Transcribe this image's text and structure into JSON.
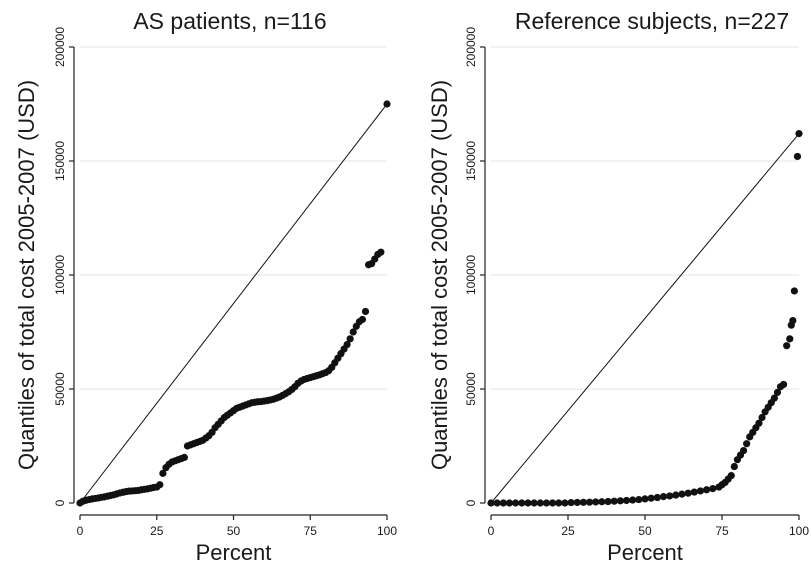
{
  "figure": {
    "ylabel": "Quantiles of total cost 2005-2007 (USD)"
  },
  "chart_data": [
    {
      "type": "scatter",
      "title": "AS patients, n=116",
      "xlabel": "Percent",
      "ylabel": "Quantiles of total cost 2005-2007 (USD)",
      "xlim": [
        0,
        100
      ],
      "ylim": [
        0,
        200000
      ],
      "xticks": [
        0,
        25,
        50,
        75,
        100
      ],
      "yticks": [
        0,
        50000,
        100000,
        150000,
        200000
      ],
      "reference_line": {
        "x": [
          0,
          100
        ],
        "y": [
          0,
          175000
        ]
      },
      "grid": true,
      "points": [
        [
          0,
          0
        ],
        [
          1,
          800
        ],
        [
          2,
          1200
        ],
        [
          3,
          1500
        ],
        [
          4,
          1800
        ],
        [
          5,
          2000
        ],
        [
          6,
          2200
        ],
        [
          7,
          2500
        ],
        [
          8,
          2700
        ],
        [
          9,
          3000
        ],
        [
          10,
          3300
        ],
        [
          11,
          3600
        ],
        [
          12,
          4000
        ],
        [
          13,
          4400
        ],
        [
          14,
          4700
        ],
        [
          15,
          5000
        ],
        [
          16,
          5200
        ],
        [
          17,
          5300
        ],
        [
          18,
          5400
        ],
        [
          19,
          5500
        ],
        [
          20,
          5800
        ],
        [
          21,
          6000
        ],
        [
          22,
          6200
        ],
        [
          23,
          6500
        ],
        [
          24,
          6800
        ],
        [
          25,
          7000
        ],
        [
          26,
          8000
        ],
        [
          27,
          13000
        ],
        [
          28,
          15500
        ],
        [
          29,
          17000
        ],
        [
          30,
          18000
        ],
        [
          31,
          18500
        ],
        [
          32,
          19000
        ],
        [
          33,
          19500
        ],
        [
          34,
          20000
        ],
        [
          35,
          25000
        ],
        [
          36,
          25500
        ],
        [
          37,
          26000
        ],
        [
          38,
          26500
        ],
        [
          39,
          27000
        ],
        [
          40,
          27500
        ],
        [
          41,
          28500
        ],
        [
          42,
          29500
        ],
        [
          43,
          31000
        ],
        [
          44,
          33000
        ],
        [
          45,
          34500
        ],
        [
          46,
          36000
        ],
        [
          47,
          37500
        ],
        [
          48,
          38500
        ],
        [
          49,
          39500
        ],
        [
          50,
          40500
        ],
        [
          51,
          41500
        ],
        [
          52,
          42000
        ],
        [
          53,
          42500
        ],
        [
          54,
          43000
        ],
        [
          55,
          43500
        ],
        [
          56,
          44000
        ],
        [
          57,
          44200
        ],
        [
          58,
          44400
        ],
        [
          59,
          44500
        ],
        [
          60,
          44700
        ],
        [
          61,
          44900
        ],
        [
          62,
          45200
        ],
        [
          63,
          45500
        ],
        [
          64,
          46000
        ],
        [
          65,
          46500
        ],
        [
          66,
          47200
        ],
        [
          67,
          48000
        ],
        [
          68,
          48800
        ],
        [
          69,
          49800
        ],
        [
          70,
          51000
        ],
        [
          71,
          52500
        ],
        [
          72,
          53500
        ],
        [
          73,
          54200
        ],
        [
          74,
          54600
        ],
        [
          75,
          55000
        ],
        [
          76,
          55400
        ],
        [
          77,
          55800
        ],
        [
          78,
          56200
        ],
        [
          79,
          56700
        ],
        [
          80,
          57200
        ],
        [
          81,
          58000
        ],
        [
          82,
          59500
        ],
        [
          83,
          61500
        ],
        [
          84,
          63500
        ],
        [
          85,
          65500
        ],
        [
          86,
          67500
        ],
        [
          87,
          69500
        ],
        [
          88,
          72000
        ],
        [
          89,
          75000
        ],
        [
          90,
          77500
        ],
        [
          91,
          79500
        ],
        [
          92,
          80500
        ],
        [
          93,
          84000
        ],
        [
          94,
          104500
        ],
        [
          95,
          105000
        ],
        [
          96,
          107000
        ],
        [
          97,
          109000
        ],
        [
          98,
          110000
        ],
        [
          100,
          175000
        ]
      ]
    },
    {
      "type": "scatter",
      "title": "Reference subjects, n=227",
      "xlabel": "Percent",
      "ylabel": "Quantiles of total cost 2005-2007 (USD)",
      "xlim": [
        0,
        100
      ],
      "ylim": [
        0,
        200000
      ],
      "xticks": [
        0,
        25,
        50,
        75,
        100
      ],
      "yticks": [
        0,
        50000,
        100000,
        150000,
        200000
      ],
      "reference_line": {
        "x": [
          0,
          100
        ],
        "y": [
          0,
          162000
        ]
      },
      "grid": true,
      "points": [
        [
          0,
          0
        ],
        [
          2,
          0
        ],
        [
          4,
          0
        ],
        [
          6,
          0
        ],
        [
          8,
          0
        ],
        [
          10,
          0
        ],
        [
          12,
          0
        ],
        [
          14,
          0
        ],
        [
          16,
          0
        ],
        [
          18,
          0
        ],
        [
          20,
          0
        ],
        [
          22,
          0
        ],
        [
          24,
          0
        ],
        [
          26,
          200
        ],
        [
          28,
          250
        ],
        [
          30,
          300
        ],
        [
          32,
          350
        ],
        [
          34,
          450
        ],
        [
          36,
          550
        ],
        [
          38,
          650
        ],
        [
          40,
          800
        ],
        [
          42,
          950
        ],
        [
          44,
          1100
        ],
        [
          46,
          1300
        ],
        [
          48,
          1500
        ],
        [
          50,
          1800
        ],
        [
          52,
          2100
        ],
        [
          54,
          2400
        ],
        [
          56,
          2800
        ],
        [
          58,
          3100
        ],
        [
          60,
          3500
        ],
        [
          62,
          3900
        ],
        [
          64,
          4300
        ],
        [
          66,
          4800
        ],
        [
          68,
          5300
        ],
        [
          70,
          5800
        ],
        [
          72,
          6300
        ],
        [
          74,
          7000
        ],
        [
          75,
          8000
        ],
        [
          76,
          9000
        ],
        [
          77,
          10500
        ],
        [
          78,
          12000
        ],
        [
          79,
          16000
        ],
        [
          80,
          19000
        ],
        [
          81,
          21000
        ],
        [
          82,
          23000
        ],
        [
          83,
          26000
        ],
        [
          84,
          29000
        ],
        [
          85,
          31000
        ],
        [
          86,
          33000
        ],
        [
          87,
          35000
        ],
        [
          88,
          37500
        ],
        [
          89,
          40000
        ],
        [
          90,
          42000
        ],
        [
          91,
          44000
        ],
        [
          92,
          46000
        ],
        [
          93,
          48500
        ],
        [
          94,
          51000
        ],
        [
          95,
          52000
        ],
        [
          96,
          69000
        ],
        [
          97,
          72000
        ],
        [
          97.5,
          78000
        ],
        [
          98,
          80000
        ],
        [
          98.5,
          93000
        ],
        [
          99.5,
          152000
        ],
        [
          100,
          162000
        ]
      ]
    }
  ]
}
